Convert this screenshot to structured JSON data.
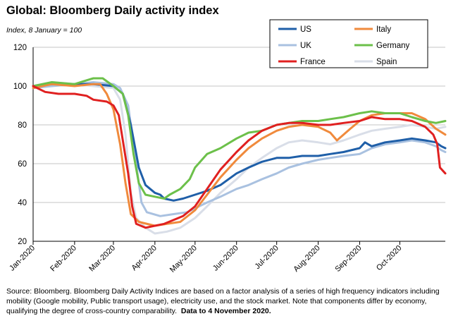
{
  "header": {
    "title": "Global: Bloomberg Daily activity index",
    "subtitle": "Index, 8 January = 100"
  },
  "footer": {
    "source_text": "Source: Bloomberg.   Bloomberg Daily Activity Indices are based on a factor analysis of a series of high frequency indicators including mobility (Google mobility, Public transport usage), electricity use, and the stock market.  Note that components differ by economy, qualifying the degree of cross-country comparability.",
    "source_bold": "Data to 4 November 2020."
  },
  "chart_data": {
    "type": "line",
    "title": "Global: Bloomberg Daily activity index",
    "subtitle": "Index, 8 January = 100",
    "xlabel": "",
    "ylabel": "",
    "ylim": [
      20,
      120
    ],
    "yticks": [
      20,
      40,
      60,
      80,
      100,
      120
    ],
    "xlim": [
      "2020-01-01",
      "2020-11-04"
    ],
    "xticks": [
      {
        "date": "2020-01-01",
        "label": "Jan-2020"
      },
      {
        "date": "2020-02-01",
        "label": "Feb-2020"
      },
      {
        "date": "2020-03-01",
        "label": "Mar-2020"
      },
      {
        "date": "2020-04-01",
        "label": "Apr-2020"
      },
      {
        "date": "2020-05-01",
        "label": "May-2020"
      },
      {
        "date": "2020-06-01",
        "label": "Jun-2020"
      },
      {
        "date": "2020-07-01",
        "label": "Jul-2020"
      },
      {
        "date": "2020-08-01",
        "label": "Aug-2020"
      },
      {
        "date": "2020-09-01",
        "label": "Sep-2020"
      },
      {
        "date": "2020-10-01",
        "label": "Oct-2020"
      }
    ],
    "grid": "horizontal",
    "legend": "top-right",
    "series": [
      {
        "name": "US",
        "color": "#1f5fa8",
        "points": [
          [
            "2020-01-01",
            100
          ],
          [
            "2020-01-15",
            101
          ],
          [
            "2020-02-01",
            101
          ],
          [
            "2020-02-15",
            101
          ],
          [
            "2020-03-01",
            100
          ],
          [
            "2020-03-08",
            96
          ],
          [
            "2020-03-14",
            80
          ],
          [
            "2020-03-20",
            58
          ],
          [
            "2020-03-25",
            49
          ],
          [
            "2020-04-01",
            45
          ],
          [
            "2020-04-05",
            44
          ],
          [
            "2020-04-08",
            42
          ],
          [
            "2020-04-15",
            41
          ],
          [
            "2020-04-22",
            42
          ],
          [
            "2020-05-01",
            44
          ],
          [
            "2020-05-10",
            46
          ],
          [
            "2020-05-20",
            49
          ],
          [
            "2020-06-01",
            55
          ],
          [
            "2020-06-10",
            58
          ],
          [
            "2020-06-20",
            61
          ],
          [
            "2020-07-01",
            63
          ],
          [
            "2020-07-10",
            63
          ],
          [
            "2020-07-20",
            64
          ],
          [
            "2020-08-01",
            64
          ],
          [
            "2020-08-10",
            65
          ],
          [
            "2020-08-20",
            66
          ],
          [
            "2020-09-01",
            68
          ],
          [
            "2020-09-05",
            71
          ],
          [
            "2020-09-10",
            69
          ],
          [
            "2020-09-20",
            71
          ],
          [
            "2020-10-01",
            72
          ],
          [
            "2020-10-10",
            73
          ],
          [
            "2020-10-20",
            72
          ],
          [
            "2020-10-28",
            71
          ],
          [
            "2020-11-01",
            69
          ],
          [
            "2020-11-04",
            68
          ]
        ]
      },
      {
        "name": "Italy",
        "color": "#f08a3c",
        "points": [
          [
            "2020-01-01",
            99
          ],
          [
            "2020-01-15",
            101
          ],
          [
            "2020-02-01",
            100
          ],
          [
            "2020-02-15",
            101
          ],
          [
            "2020-02-20",
            101
          ],
          [
            "2020-02-25",
            96
          ],
          [
            "2020-03-01",
            88
          ],
          [
            "2020-03-06",
            70
          ],
          [
            "2020-03-10",
            50
          ],
          [
            "2020-03-14",
            34
          ],
          [
            "2020-03-20",
            30
          ],
          [
            "2020-04-01",
            28
          ],
          [
            "2020-04-10",
            29
          ],
          [
            "2020-04-20",
            30
          ],
          [
            "2020-05-01",
            36
          ],
          [
            "2020-05-10",
            44
          ],
          [
            "2020-05-20",
            53
          ],
          [
            "2020-06-01",
            62
          ],
          [
            "2020-06-10",
            68
          ],
          [
            "2020-06-20",
            73
          ],
          [
            "2020-07-01",
            77
          ],
          [
            "2020-07-10",
            79
          ],
          [
            "2020-07-20",
            80
          ],
          [
            "2020-08-01",
            79
          ],
          [
            "2020-08-10",
            76
          ],
          [
            "2020-08-15",
            72
          ],
          [
            "2020-08-25",
            78
          ],
          [
            "2020-09-01",
            82
          ],
          [
            "2020-09-10",
            85
          ],
          [
            "2020-09-20",
            86
          ],
          [
            "2020-10-01",
            86
          ],
          [
            "2020-10-10",
            86
          ],
          [
            "2020-10-20",
            83
          ],
          [
            "2020-10-28",
            78
          ],
          [
            "2020-11-04",
            75
          ]
        ]
      },
      {
        "name": "UK",
        "color": "#a9c1e0",
        "points": [
          [
            "2020-01-01",
            99
          ],
          [
            "2020-01-15",
            100
          ],
          [
            "2020-02-01",
            101
          ],
          [
            "2020-02-15",
            102
          ],
          [
            "2020-03-01",
            101
          ],
          [
            "2020-03-06",
            99
          ],
          [
            "2020-03-12",
            90
          ],
          [
            "2020-03-18",
            60
          ],
          [
            "2020-03-22",
            40
          ],
          [
            "2020-03-26",
            35
          ],
          [
            "2020-04-05",
            33
          ],
          [
            "2020-04-15",
            34
          ],
          [
            "2020-04-25",
            35
          ],
          [
            "2020-05-01",
            37
          ],
          [
            "2020-05-10",
            40
          ],
          [
            "2020-05-20",
            43
          ],
          [
            "2020-06-01",
            47
          ],
          [
            "2020-06-10",
            49
          ],
          [
            "2020-06-20",
            52
          ],
          [
            "2020-07-01",
            55
          ],
          [
            "2020-07-10",
            58
          ],
          [
            "2020-07-20",
            60
          ],
          [
            "2020-08-01",
            62
          ],
          [
            "2020-08-10",
            63
          ],
          [
            "2020-08-20",
            64
          ],
          [
            "2020-09-01",
            65
          ],
          [
            "2020-09-10",
            68
          ],
          [
            "2020-09-20",
            70
          ],
          [
            "2020-10-01",
            71
          ],
          [
            "2020-10-10",
            72
          ],
          [
            "2020-10-20",
            71
          ],
          [
            "2020-10-28",
            69
          ],
          [
            "2020-11-01",
            67
          ],
          [
            "2020-11-04",
            66
          ]
        ]
      },
      {
        "name": "Germany",
        "color": "#6cc04a",
        "points": [
          [
            "2020-01-01",
            100
          ],
          [
            "2020-01-15",
            102
          ],
          [
            "2020-02-01",
            101
          ],
          [
            "2020-02-10",
            103
          ],
          [
            "2020-02-15",
            104
          ],
          [
            "2020-02-22",
            104
          ],
          [
            "2020-03-01",
            100
          ],
          [
            "2020-03-08",
            96
          ],
          [
            "2020-03-12",
            85
          ],
          [
            "2020-03-16",
            65
          ],
          [
            "2020-03-20",
            50
          ],
          [
            "2020-03-25",
            44
          ],
          [
            "2020-04-01",
            43
          ],
          [
            "2020-04-08",
            42
          ],
          [
            "2020-04-12",
            44
          ],
          [
            "2020-04-20",
            47
          ],
          [
            "2020-04-27",
            52
          ],
          [
            "2020-05-01",
            58
          ],
          [
            "2020-05-10",
            65
          ],
          [
            "2020-05-20",
            68
          ],
          [
            "2020-06-01",
            73
          ],
          [
            "2020-06-10",
            76
          ],
          [
            "2020-06-20",
            77
          ],
          [
            "2020-07-01",
            80
          ],
          [
            "2020-07-10",
            81
          ],
          [
            "2020-07-20",
            82
          ],
          [
            "2020-08-01",
            82
          ],
          [
            "2020-08-10",
            83
          ],
          [
            "2020-08-20",
            84
          ],
          [
            "2020-09-01",
            86
          ],
          [
            "2020-09-10",
            87
          ],
          [
            "2020-09-20",
            86
          ],
          [
            "2020-10-01",
            86
          ],
          [
            "2020-10-10",
            84
          ],
          [
            "2020-10-20",
            82
          ],
          [
            "2020-10-28",
            81
          ],
          [
            "2020-11-04",
            82
          ]
        ]
      },
      {
        "name": "France",
        "color": "#e02020",
        "points": [
          [
            "2020-01-01",
            100
          ],
          [
            "2020-01-10",
            97
          ],
          [
            "2020-01-20",
            96
          ],
          [
            "2020-02-01",
            96
          ],
          [
            "2020-02-10",
            95
          ],
          [
            "2020-02-15",
            93
          ],
          [
            "2020-02-25",
            92
          ],
          [
            "2020-03-01",
            90
          ],
          [
            "2020-03-05",
            85
          ],
          [
            "2020-03-08",
            72
          ],
          [
            "2020-03-12",
            55
          ],
          [
            "2020-03-15",
            38
          ],
          [
            "2020-03-18",
            29
          ],
          [
            "2020-03-25",
            27
          ],
          [
            "2020-04-01",
            28
          ],
          [
            "2020-04-08",
            29
          ],
          [
            "2020-04-15",
            31
          ],
          [
            "2020-04-22",
            33
          ],
          [
            "2020-05-01",
            38
          ],
          [
            "2020-05-10",
            47
          ],
          [
            "2020-05-20",
            57
          ],
          [
            "2020-06-01",
            66
          ],
          [
            "2020-06-10",
            72
          ],
          [
            "2020-06-20",
            77
          ],
          [
            "2020-07-01",
            80
          ],
          [
            "2020-07-10",
            81
          ],
          [
            "2020-07-20",
            81
          ],
          [
            "2020-08-01",
            80
          ],
          [
            "2020-08-10",
            80
          ],
          [
            "2020-08-20",
            81
          ],
          [
            "2020-09-01",
            82
          ],
          [
            "2020-09-10",
            84
          ],
          [
            "2020-09-20",
            83
          ],
          [
            "2020-10-01",
            83
          ],
          [
            "2020-10-10",
            82
          ],
          [
            "2020-10-20",
            79
          ],
          [
            "2020-10-26",
            75
          ],
          [
            "2020-10-29",
            70
          ],
          [
            "2020-10-31",
            58
          ],
          [
            "2020-11-04",
            55
          ]
        ]
      },
      {
        "name": "Spain",
        "color": "#d9dee8",
        "points": [
          [
            "2020-01-01",
            100
          ],
          [
            "2020-01-15",
            102
          ],
          [
            "2020-02-01",
            101
          ],
          [
            "2020-02-15",
            100
          ],
          [
            "2020-03-01",
            99
          ],
          [
            "2020-03-06",
            93
          ],
          [
            "2020-03-10",
            75
          ],
          [
            "2020-03-14",
            45
          ],
          [
            "2020-03-18",
            32
          ],
          [
            "2020-03-25",
            27
          ],
          [
            "2020-04-01",
            24
          ],
          [
            "2020-04-10",
            25
          ],
          [
            "2020-04-20",
            27
          ],
          [
            "2020-05-01",
            32
          ],
          [
            "2020-05-10",
            38
          ],
          [
            "2020-05-20",
            45
          ],
          [
            "2020-06-01",
            52
          ],
          [
            "2020-06-10",
            58
          ],
          [
            "2020-06-20",
            63
          ],
          [
            "2020-07-01",
            68
          ],
          [
            "2020-07-10",
            71
          ],
          [
            "2020-07-20",
            72
          ],
          [
            "2020-08-01",
            71
          ],
          [
            "2020-08-10",
            70
          ],
          [
            "2020-08-20",
            72
          ],
          [
            "2020-09-01",
            75
          ],
          [
            "2020-09-10",
            77
          ],
          [
            "2020-09-20",
            78
          ],
          [
            "2020-10-01",
            79
          ],
          [
            "2020-10-10",
            80
          ],
          [
            "2020-10-20",
            79
          ],
          [
            "2020-10-28",
            78
          ],
          [
            "2020-11-04",
            79
          ]
        ]
      }
    ]
  }
}
